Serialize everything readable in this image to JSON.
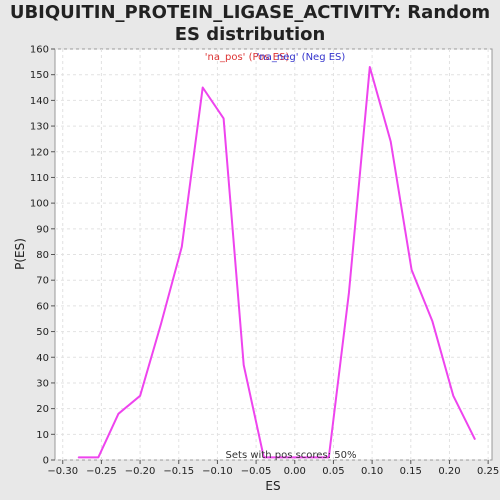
{
  "chart_data": {
    "type": "line",
    "title": "UBIQUITIN_PROTEIN_LIGASE_ACTIVITY: Random ES distribution",
    "xlabel": "ES",
    "ylabel": "P(ES)",
    "xlim": [
      -0.31,
      0.255
    ],
    "ylim": [
      0,
      160
    ],
    "x_ticks": [
      -0.3,
      -0.25,
      -0.2,
      -0.15,
      -0.1,
      -0.05,
      0.0,
      0.05,
      0.1,
      0.15,
      0.2,
      0.25
    ],
    "x_tick_labels": [
      "−0.30",
      "−0.25",
      "−0.20",
      "−0.15",
      "−0.10",
      "−0.05",
      "0.00",
      "0.05",
      "0.10",
      "0.15",
      "0.20",
      "0.25"
    ],
    "y_ticks": [
      0,
      10,
      20,
      30,
      40,
      50,
      60,
      70,
      80,
      90,
      100,
      110,
      120,
      130,
      140,
      150,
      160
    ],
    "grid": true,
    "legend_placement": "top-center",
    "series": [
      {
        "name": "'na_pos' (Pos ES)",
        "color": "#dd3333",
        "x": [],
        "y": []
      },
      {
        "name": "'na_neg' (Neg ES)",
        "color": "#3333cc",
        "x": [],
        "y": []
      },
      {
        "color": "#ee44ee",
        "x": [
          -0.28,
          -0.254,
          -0.228,
          -0.2,
          -0.173,
          -0.146,
          -0.119,
          -0.092,
          -0.066,
          -0.04,
          0.044,
          0.07,
          0.097,
          0.124,
          0.151,
          0.178,
          0.205,
          0.233
        ],
        "y": [
          1,
          1,
          18,
          25,
          53,
          83,
          145,
          133,
          37,
          1,
          1,
          65,
          153,
          124,
          74,
          54,
          25,
          8
        ]
      }
    ],
    "annotation": "Sets with pos scores: 50%"
  }
}
